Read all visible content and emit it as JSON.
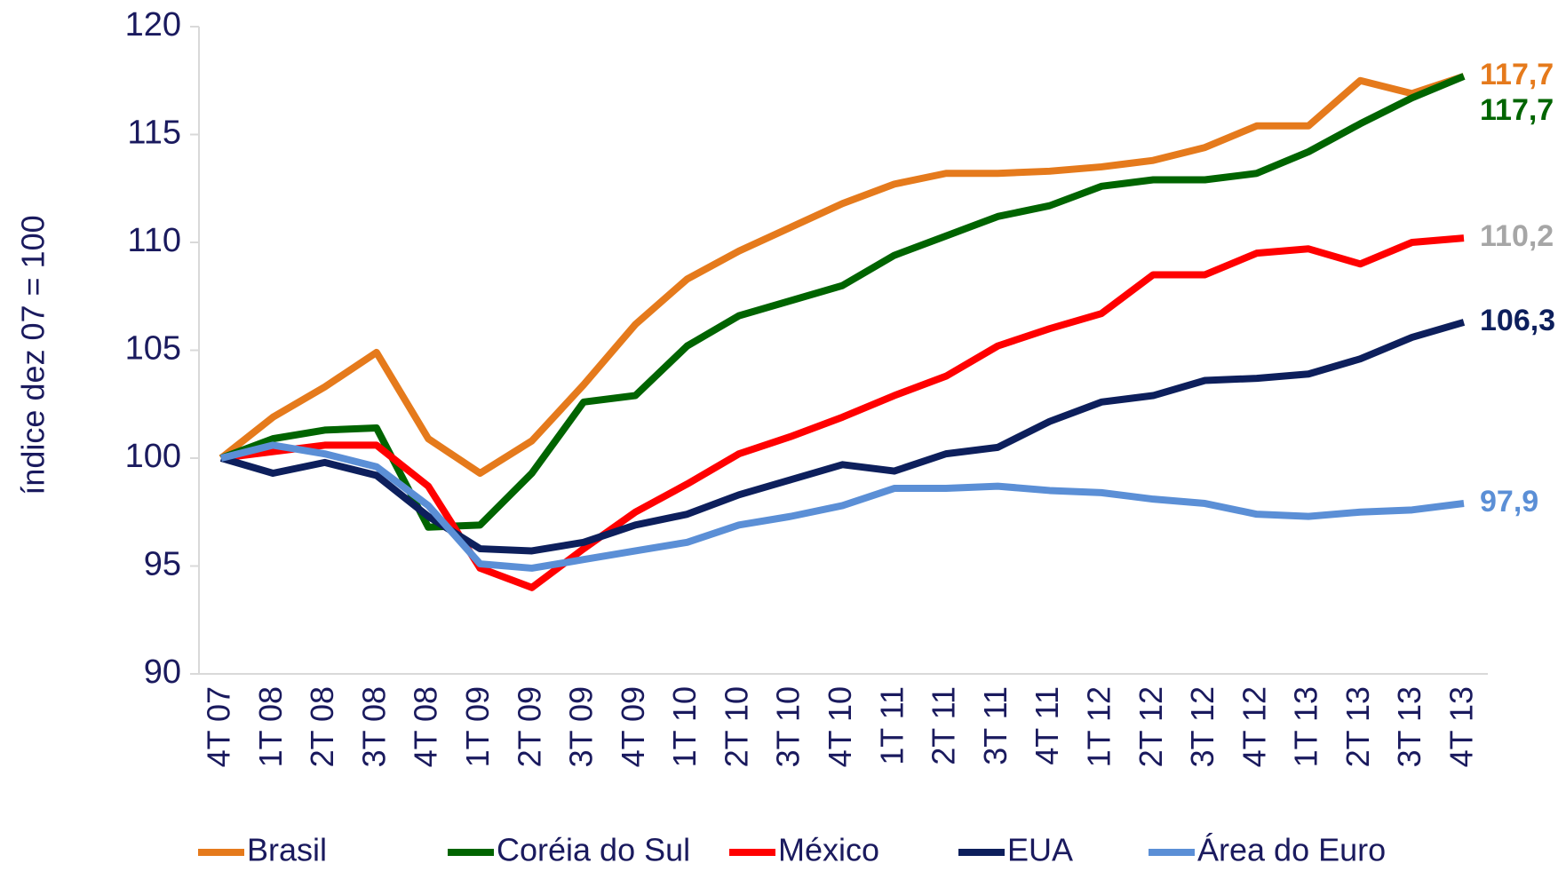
{
  "chart_data": {
    "type": "line",
    "y_label": "índice dez 07 = 100",
    "categories": [
      "4T 07",
      "1T 08",
      "2T 08",
      "3T 08",
      "4T 08",
      "1T 09",
      "2T 09",
      "3T 09",
      "4T 09",
      "1T 10",
      "2T 10",
      "3T 10",
      "4T 10",
      "1T 11",
      "2T 11",
      "3T 11",
      "4T 11",
      "1T 12",
      "2T 12",
      "3T 12",
      "4T 12",
      "1T 13",
      "2T 13",
      "3T 13",
      "4T 13"
    ],
    "ylim": [
      90,
      120
    ],
    "yticks": [
      90,
      95,
      100,
      105,
      110,
      115,
      120
    ],
    "grid": false,
    "legend": "bottom",
    "series": [
      {
        "name": "Brasil",
        "color": "#e57a1c",
        "label_color": "#e57a1c",
        "values": [
          100,
          101.9,
          103.3,
          104.9,
          100.9,
          99.3,
          100.8,
          103.4,
          106.2,
          108.3,
          109.6,
          110.7,
          111.8,
          112.7,
          113.2,
          113.2,
          113.3,
          113.5,
          113.8,
          114.4,
          115.4,
          115.4,
          117.5,
          116.9,
          117.7
        ],
        "value_labels": [
          null,
          null,
          null,
          null,
          null,
          null,
          null,
          null,
          null,
          null,
          null,
          null,
          null,
          null,
          null,
          null,
          null,
          null,
          null,
          null,
          null,
          null,
          null,
          null,
          "117,7"
        ]
      },
      {
        "name": "Coréia do Sul",
        "color": "#006400",
        "label_color": "#006400",
        "values": [
          100,
          100.9,
          101.3,
          101.4,
          96.8,
          96.9,
          99.3,
          102.6,
          102.9,
          105.2,
          106.6,
          107.3,
          108,
          109.4,
          110.3,
          111.2,
          111.7,
          112.6,
          112.9,
          112.9,
          113.2,
          114.2,
          115.5,
          116.7,
          117.7
        ],
        "value_labels": [
          null,
          null,
          null,
          null,
          null,
          null,
          null,
          null,
          null,
          null,
          null,
          null,
          null,
          null,
          null,
          null,
          null,
          null,
          null,
          null,
          null,
          null,
          null,
          null,
          "117,7"
        ]
      },
      {
        "name": "México",
        "color": "#ff0000",
        "label_color": "#a6a6a6",
        "values": [
          100,
          100.3,
          100.6,
          100.6,
          98.7,
          94.9,
          94.0,
          95.8,
          97.5,
          98.8,
          100.2,
          101.0,
          101.9,
          102.9,
          103.8,
          105.2,
          106.0,
          106.7,
          108.5,
          108.5,
          109.5,
          109.7,
          109.0,
          110.0,
          110.2
        ],
        "value_labels": [
          null,
          null,
          null,
          null,
          null,
          null,
          null,
          null,
          null,
          null,
          null,
          null,
          null,
          null,
          null,
          null,
          null,
          null,
          null,
          null,
          null,
          null,
          null,
          null,
          "110,2"
        ]
      },
      {
        "name": "EUA",
        "color": "#0d1f5c",
        "label_color": "#0d1f5c",
        "values": [
          100,
          99.3,
          99.8,
          99.2,
          97.3,
          95.8,
          95.7,
          96.1,
          96.9,
          97.4,
          98.3,
          99.0,
          99.7,
          99.4,
          100.2,
          100.5,
          101.7,
          102.6,
          102.9,
          103.6,
          103.7,
          103.9,
          104.6,
          105.6,
          106.3
        ],
        "value_labels": [
          null,
          null,
          null,
          null,
          null,
          null,
          null,
          null,
          null,
          null,
          null,
          null,
          null,
          null,
          null,
          null,
          null,
          null,
          null,
          null,
          null,
          null,
          null,
          null,
          "106,3"
        ]
      },
      {
        "name": "Área do Euro",
        "color": "#5b8fd6",
        "label_color": "#5b8fd6",
        "values": [
          100,
          100.6,
          100.2,
          99.6,
          97.8,
          95.1,
          94.9,
          95.3,
          95.7,
          96.1,
          96.9,
          97.3,
          97.8,
          98.6,
          98.6,
          98.7,
          98.5,
          98.4,
          98.1,
          97.9,
          97.4,
          97.3,
          97.5,
          97.6,
          97.9
        ],
        "value_labels": [
          null,
          null,
          null,
          null,
          null,
          null,
          null,
          null,
          null,
          null,
          null,
          null,
          null,
          null,
          null,
          null,
          null,
          null,
          null,
          null,
          null,
          null,
          null,
          null,
          "97,9"
        ]
      }
    ]
  }
}
